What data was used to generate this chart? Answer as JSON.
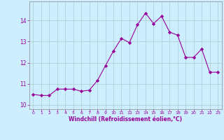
{
  "x": [
    0,
    1,
    2,
    3,
    4,
    5,
    6,
    7,
    8,
    9,
    10,
    11,
    12,
    13,
    14,
    15,
    16,
    17,
    18,
    19,
    20,
    21,
    22,
    23
  ],
  "y": [
    10.5,
    10.45,
    10.45,
    10.75,
    10.75,
    10.75,
    10.65,
    10.7,
    11.15,
    11.85,
    12.55,
    13.15,
    12.95,
    13.8,
    14.35,
    13.85,
    14.2,
    13.45,
    13.3,
    12.25,
    12.25,
    12.65,
    11.55,
    11.55
  ],
  "line_color": "#990099",
  "marker": "D",
  "marker_size": 2.2,
  "bg_color": "#cceeff",
  "grid_color": "#aacccc",
  "xlabel": "Windchill (Refroidissement éolien,°C)",
  "xlabel_color": "#990099",
  "tick_color": "#990099",
  "label_color": "#990099",
  "ylim": [
    9.8,
    14.9
  ],
  "xlim": [
    -0.5,
    23.5
  ],
  "yticks": [
    10,
    11,
    12,
    13,
    14
  ],
  "xticks": [
    0,
    1,
    2,
    3,
    4,
    5,
    6,
    7,
    8,
    9,
    10,
    11,
    12,
    13,
    14,
    15,
    16,
    17,
    18,
    19,
    20,
    21,
    22,
    23
  ]
}
